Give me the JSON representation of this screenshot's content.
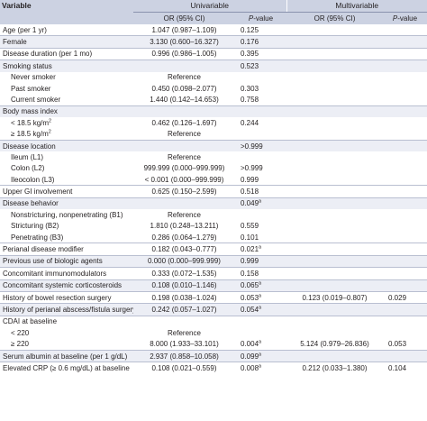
{
  "header": {
    "variable": "Variable",
    "univariable": "Univariable",
    "multivariable": "Multivariable",
    "or_ci": "OR (95% CI)",
    "p_prefix": "P",
    "p_suffix": "-value"
  },
  "rows": [
    {
      "label": "Age (per 1 yr)",
      "u_or": "1.047 (0.987–1.109)",
      "u_p": "0.125",
      "u_sup": "",
      "m_or": "",
      "m_p": "",
      "indent": false,
      "stripe": false,
      "sep": false
    },
    {
      "label": "Female",
      "u_or": "3.130 (0.600–16.327)",
      "u_p": "0.176",
      "u_sup": "",
      "m_or": "",
      "m_p": "",
      "indent": false,
      "stripe": true,
      "sep": true
    },
    {
      "label": "Disease duration (per 1 mo)",
      "u_or": "0.996 (0.986–1.005)",
      "u_p": "0.395",
      "u_sup": "",
      "m_or": "",
      "m_p": "",
      "indent": false,
      "stripe": false,
      "sep": true
    },
    {
      "label": "Smoking status",
      "u_or": "",
      "u_p": "0.523",
      "u_sup": "",
      "m_or": "",
      "m_p": "",
      "indent": false,
      "stripe": true,
      "sep": true
    },
    {
      "label": "Never smoker",
      "u_or": "Reference",
      "u_p": "",
      "u_sup": "",
      "m_or": "",
      "m_p": "",
      "indent": true,
      "stripe": false,
      "sep": false
    },
    {
      "label": "Past smoker",
      "u_or": "0.450 (0.098–2.077)",
      "u_p": "0.303",
      "u_sup": "",
      "m_or": "",
      "m_p": "",
      "indent": true,
      "stripe": false,
      "sep": false
    },
    {
      "label": "Current smoker",
      "u_or": "1.440 (0.142–14.653)",
      "u_p": "0.758",
      "u_sup": "",
      "m_or": "",
      "m_p": "",
      "indent": true,
      "stripe": false,
      "sep": false
    },
    {
      "label": "Body mass index",
      "u_or": "",
      "u_p": "",
      "u_sup": "",
      "m_or": "",
      "m_p": "",
      "indent": false,
      "stripe": true,
      "sep": true
    },
    {
      "label": "< 18.5 kg/m",
      "label_sup": "2",
      "u_or": "0.462 (0.126–1.697)",
      "u_p": "0.244",
      "u_sup": "",
      "m_or": "",
      "m_p": "",
      "indent": true,
      "stripe": false,
      "sep": false
    },
    {
      "label": "≥ 18.5 kg/m",
      "label_sup": "2",
      "u_or": "Reference",
      "u_p": "",
      "u_sup": "",
      "m_or": "",
      "m_p": "",
      "indent": true,
      "stripe": false,
      "sep": false
    },
    {
      "label": "Disease location",
      "u_or": "",
      "u_p": ">0.999",
      "u_sup": "",
      "m_or": "",
      "m_p": "",
      "indent": false,
      "stripe": true,
      "sep": true
    },
    {
      "label": "Ileum (L1)",
      "u_or": "Reference",
      "u_p": "",
      "u_sup": "",
      "m_or": "",
      "m_p": "",
      "indent": true,
      "stripe": false,
      "sep": false
    },
    {
      "label": "Colon (L2)",
      "u_or": "999.999 (0.000–999.999)",
      "u_p": ">0.999",
      "u_sup": "",
      "m_or": "",
      "m_p": "",
      "indent": true,
      "stripe": false,
      "sep": false
    },
    {
      "label": "Ileocolon (L3)",
      "u_or": "< 0.001 (0.000–999.999)",
      "u_p": "0.999",
      "u_sup": "",
      "m_or": "",
      "m_p": "",
      "indent": true,
      "stripe": false,
      "sep": false
    },
    {
      "label": "Upper GI involvement",
      "u_or": "0.625 (0.150–2.599)",
      "u_p": "0.518",
      "u_sup": "",
      "m_or": "",
      "m_p": "",
      "indent": false,
      "stripe": false,
      "sep": true
    },
    {
      "label": "Disease behavior",
      "u_or": "",
      "u_p": "0.049",
      "u_sup": "a",
      "m_or": "",
      "m_p": "",
      "indent": false,
      "stripe": true,
      "sep": true
    },
    {
      "label": "Nonstricturing, nonpenetrating (B1)",
      "u_or": "Reference",
      "u_p": "",
      "u_sup": "",
      "m_or": "",
      "m_p": "",
      "indent": true,
      "stripe": false,
      "sep": false
    },
    {
      "label": "Stricturing (B2)",
      "u_or": "1.810 (0.248–13.211)",
      "u_p": "0.559",
      "u_sup": "",
      "m_or": "",
      "m_p": "",
      "indent": true,
      "stripe": false,
      "sep": false
    },
    {
      "label": "Penetrating (B3)",
      "u_or": "0.286 (0.064–1.279)",
      "u_p": "0.101",
      "u_sup": "",
      "m_or": "",
      "m_p": "",
      "indent": true,
      "stripe": false,
      "sep": false
    },
    {
      "label": "Perianal disease modifier",
      "u_or": "0.182 (0.043–0.777)",
      "u_p": "0.021",
      "u_sup": "a",
      "m_or": "",
      "m_p": "",
      "indent": false,
      "stripe": false,
      "sep": true
    },
    {
      "label": "Previous use of biologic agents",
      "u_or": "0.000 (0.000–999.999)",
      "u_p": "0.999",
      "u_sup": "",
      "m_or": "",
      "m_p": "",
      "indent": false,
      "stripe": true,
      "sep": true
    },
    {
      "label": "Concomitant immunomodulators",
      "u_or": "0.333 (0.072–1.535)",
      "u_p": "0.158",
      "u_sup": "",
      "m_or": "",
      "m_p": "",
      "indent": false,
      "stripe": false,
      "sep": true
    },
    {
      "label": "Concomitant systemic corticosteroids",
      "u_or": "0.108 (0.010–1.146)",
      "u_p": "0.065",
      "u_sup": "a",
      "m_or": "",
      "m_p": "",
      "indent": false,
      "stripe": true,
      "sep": true
    },
    {
      "label": "History of bowel resection surgery",
      "u_or": "0.198 (0.038–1.024)",
      "u_p": "0.053",
      "u_sup": "a",
      "m_or": "0.123 (0.019–0.807)",
      "m_p": "0.029",
      "indent": false,
      "stripe": false,
      "sep": true
    },
    {
      "label": "History of perianal abscess/fistula surgery",
      "u_or": "0.242 (0.057–1.027)",
      "u_p": "0.054",
      "u_sup": "a",
      "m_or": "",
      "m_p": "",
      "indent": false,
      "stripe": true,
      "sep": true
    },
    {
      "label": "CDAI at baseline",
      "u_or": "",
      "u_p": "",
      "u_sup": "",
      "m_or": "",
      "m_p": "",
      "indent": false,
      "stripe": false,
      "sep": true
    },
    {
      "label": "< 220",
      "u_or": "Reference",
      "u_p": "",
      "u_sup": "",
      "m_or": "",
      "m_p": "",
      "indent": true,
      "stripe": false,
      "sep": false
    },
    {
      "label": "≥ 220",
      "u_or": "8.000 (1.933–33.101)",
      "u_p": "0.004",
      "u_sup": "a",
      "m_or": "5.124 (0.979–26.836)",
      "m_p": "0.053",
      "indent": true,
      "stripe": false,
      "sep": false
    },
    {
      "label": "Serum albumin at baseline (per 1 g/dL)",
      "u_or": "2.937 (0.858–10.058)",
      "u_p": "0.099",
      "u_sup": "a",
      "m_or": "",
      "m_p": "",
      "indent": false,
      "stripe": true,
      "sep": true
    },
    {
      "label": "Elevated CRP (≥ 0.6 mg/dL) at baseline",
      "u_or": "0.108 (0.021–0.559)",
      "u_p": "0.008",
      "u_sup": "a",
      "m_or": "0.212 (0.033–1.380)",
      "m_p": "0.104",
      "indent": false,
      "stripe": false,
      "sep": true
    }
  ]
}
